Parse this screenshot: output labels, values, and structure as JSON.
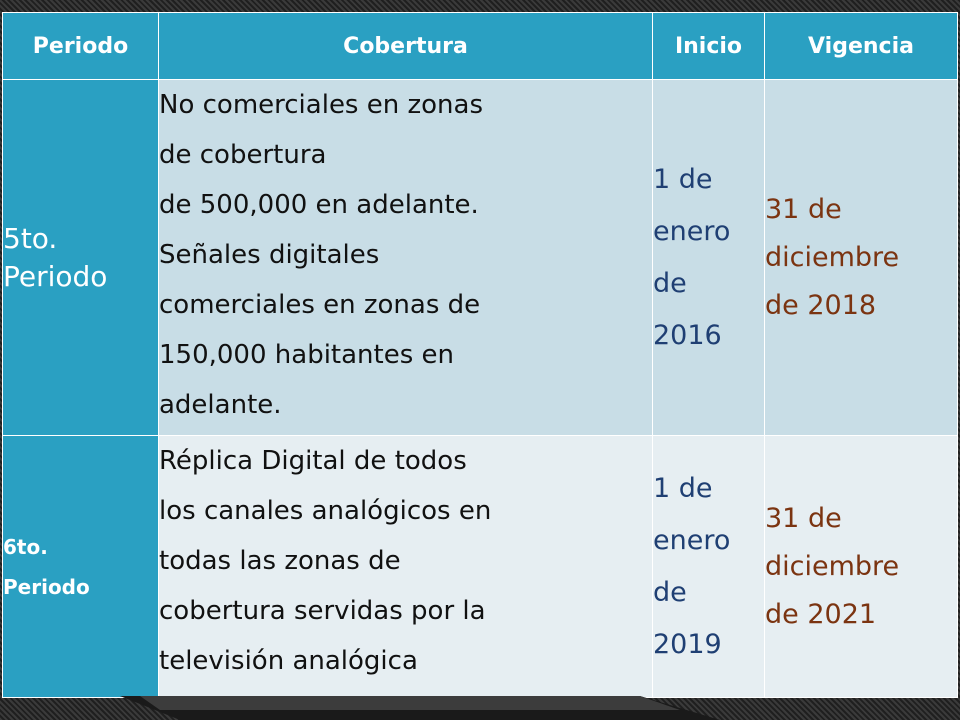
{
  "header": {
    "periodo": "Periodo",
    "cobertura": "Cobertura",
    "inicio": "Inicio",
    "vigencia": "Vigencia"
  },
  "rows": [
    {
      "periodo_lines": [
        "5to.",
        "Periodo"
      ],
      "cobertura_lines": [
        "No comerciales en zonas",
        "de cobertura",
        "de 500,000 en adelante.",
        "Señales digitales",
        "comerciales en zonas de",
        "150,000 habitantes en",
        "adelante."
      ],
      "inicio_lines": [
        "1 de",
        "enero",
        "de",
        "2016"
      ],
      "vigencia_lines": [
        "31 de",
        "diciembre",
        "de 2018"
      ]
    },
    {
      "periodo_lines": [
        "6to.",
        "Periodo"
      ],
      "cobertura_lines": [
        "Réplica Digital de todos",
        "los canales analógicos en",
        "todas las zonas de",
        "cobertura servidas por la",
        "televisión analógica"
      ],
      "inicio_lines": [
        "1 de",
        "enero",
        "de",
        "2019"
      ],
      "vigencia_lines": [
        "31 de",
        "diciembre",
        "de 2021"
      ]
    }
  ],
  "colors": {
    "header_bg": "#2aa0c2",
    "row1_bg": "#c8dde6",
    "row2_bg": "#e6eef2",
    "inicio_text": "#1f3f73",
    "vigencia_text": "#7b3411"
  }
}
